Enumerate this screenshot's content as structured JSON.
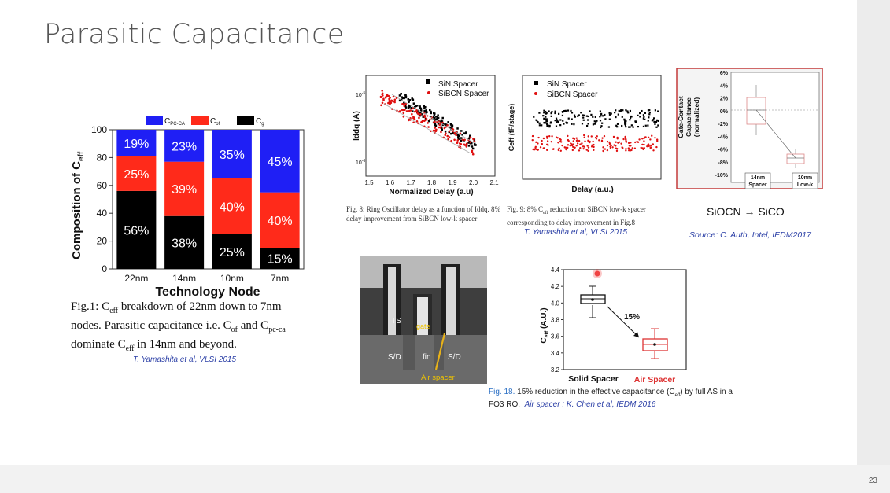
{
  "slide": {
    "title": "Parasitic Capacitance",
    "page_number": "23"
  },
  "fig1": {
    "legend": [
      {
        "label": "C",
        "sub": "PC-CA",
        "color": "#1f1ff5"
      },
      {
        "label": "C",
        "sub": "of",
        "color": "#ff2a1a"
      },
      {
        "label": "C",
        "sub": "g",
        "color": "#000000"
      }
    ],
    "ylabel_main": "Composition of C",
    "ylabel_sub": "eff",
    "xlabel": "Technology Node",
    "yticks": [
      "0",
      "20",
      "40",
      "60",
      "80",
      "100"
    ],
    "categories": [
      "22nm",
      "14nm",
      "10nm",
      "7nm"
    ],
    "caption_line1": "Fig.1: C",
    "caption_line1_sub": "eff",
    "caption_line1_tail": " breakdown of 22nm down to 7nm",
    "caption_line2_a": "nodes. Parasitic capacitance i.e. C",
    "caption_line2_sub1": "of",
    "caption_line2_b": " and C",
    "caption_line2_sub2": "pc-ca",
    "caption_line3_a": "dominate C",
    "caption_line3_sub": "eff",
    "caption_line3_b": " in 14nm and beyond.",
    "citation": "T. Yamashita et al, VLSI 2015"
  },
  "chart_data": [
    {
      "type": "bar",
      "stacked": true,
      "categories": [
        "22nm",
        "14nm",
        "10nm",
        "7nm"
      ],
      "series": [
        {
          "name": "Cg",
          "values": [
            56,
            38,
            25,
            15
          ],
          "color": "#000000"
        },
        {
          "name": "Cof",
          "values": [
            25,
            39,
            40,
            40
          ],
          "color": "#ff2a1a"
        },
        {
          "name": "CPC-CA",
          "values": [
            19,
            23,
            35,
            45
          ],
          "color": "#1f1ff5"
        }
      ],
      "data_labels": [
        [
          "56%",
          "25%",
          "19%"
        ],
        [
          "38%",
          "39%",
          "23%"
        ],
        [
          "25%",
          "40%",
          "35%"
        ],
        [
          "15%",
          "40%",
          "45%"
        ]
      ],
      "xlabel": "Technology Node",
      "ylabel": "Composition of Ceff",
      "ylim": [
        0,
        100
      ]
    },
    {
      "type": "scatter",
      "xlabel": "Normalized Delay (a.u)",
      "ylabel": "Iddq (A)",
      "xticks": [
        "1.5",
        "1.6",
        "1.7",
        "1.8",
        "1.9",
        "2.0",
        "2.1"
      ],
      "yticks": [
        "10-5",
        "10-6"
      ],
      "xlim": [
        1.5,
        2.1
      ],
      "series": [
        {
          "name": "SiN Spacer",
          "color": "#000000"
        },
        {
          "name": "SiBCN Spacer",
          "color": "#e01010"
        }
      ]
    },
    {
      "type": "scatter",
      "xlabel": "Delay (a.u.)",
      "ylabel": "Ceff (fF/stage)",
      "series": [
        {
          "name": "SiN Spacer",
          "color": "#000000"
        },
        {
          "name": "SiBCN Spacer",
          "color": "#e01010"
        }
      ]
    },
    {
      "type": "box",
      "ylabel": "Gate-Contact Capacitance (normalized)",
      "categories": [
        "14nm Spacer",
        "10nm Low-k"
      ],
      "yticks": [
        "6%",
        "4%",
        "2%",
        "0%",
        "-2%",
        "-4%",
        "-6%",
        "-8%",
        "-10%"
      ],
      "ylim": [
        -10,
        6
      ],
      "medians": [
        0,
        -7.5
      ]
    },
    {
      "type": "box",
      "ylabel": "Ceff (A.U.)",
      "categories": [
        "Solid Spacer",
        "Air Spacer"
      ],
      "yticks": [
        "3.2",
        "3.4",
        "3.6",
        "3.8",
        "4.0",
        "4.2",
        "4.4"
      ],
      "ylim": [
        3.2,
        4.4
      ],
      "medians": [
        4.03,
        3.5
      ],
      "annotation": "15%"
    }
  ],
  "fig8": {
    "legend_sin": "SiN Spacer",
    "legend_sibcn": "SiBCN Spacer",
    "xlabel": "Normalized Delay (a.u)",
    "ylabel": "Iddq (A)",
    "caption": "Fig. 8:  Ring Oscillator delay as a function of Iddq. 8% delay improvement from SiBCN low-k spacer"
  },
  "fig9": {
    "legend_sin": "SiN Spacer",
    "legend_sibcn": "SiBCN Spacer",
    "xlabel": "Delay (a.u.)",
    "ylabel": "Ceff (fF/stage)",
    "caption_a": "Fig. 9:  8% C",
    "caption_sub": "eff",
    "caption_b": " reduction on SiBCN low-k spacer corresponding to delay improvement in Fig.8",
    "citation": "T. Yamashita et al, VLSI 2015"
  },
  "intel_fig": {
    "ylabel": "Gate-Contact Capacitance (normalized)",
    "cat1_a": "14nm",
    "cat1_b": "Spacer",
    "cat2_a": "10nm",
    "cat2_b": "Low-k",
    "material_change": "SiOCN → SiCO",
    "citation": "Source: C. Auth, Intel, IEDM2017"
  },
  "photo": {
    "label_ts": "TS",
    "label_gate": "gate",
    "label_sd1": "S/D",
    "label_fin": "fin",
    "label_sd2": "S/D",
    "label_air": "Air spacer"
  },
  "fig18": {
    "ylabel_main": "C",
    "ylabel_sub": "eff",
    "ylabel_tail": " (A.U.)",
    "cat_solid": "Solid Spacer",
    "cat_air": "Air Spacer",
    "annotation": "15%",
    "caption_fig": "Fig. 18.",
    "caption_a": "  15% reduction in the effective capacitance (C",
    "caption_sub": "eff",
    "caption_b": ") by full AS in a",
    "caption_line2": "FO3 RO.",
    "citation": "Air spacer : K. Chen et al,  IEDM 2016"
  },
  "colors": {
    "blue": "#1f1ff5",
    "red": "#ff2a1a",
    "black": "#000000",
    "citation_blue": "#2b3fa6"
  }
}
